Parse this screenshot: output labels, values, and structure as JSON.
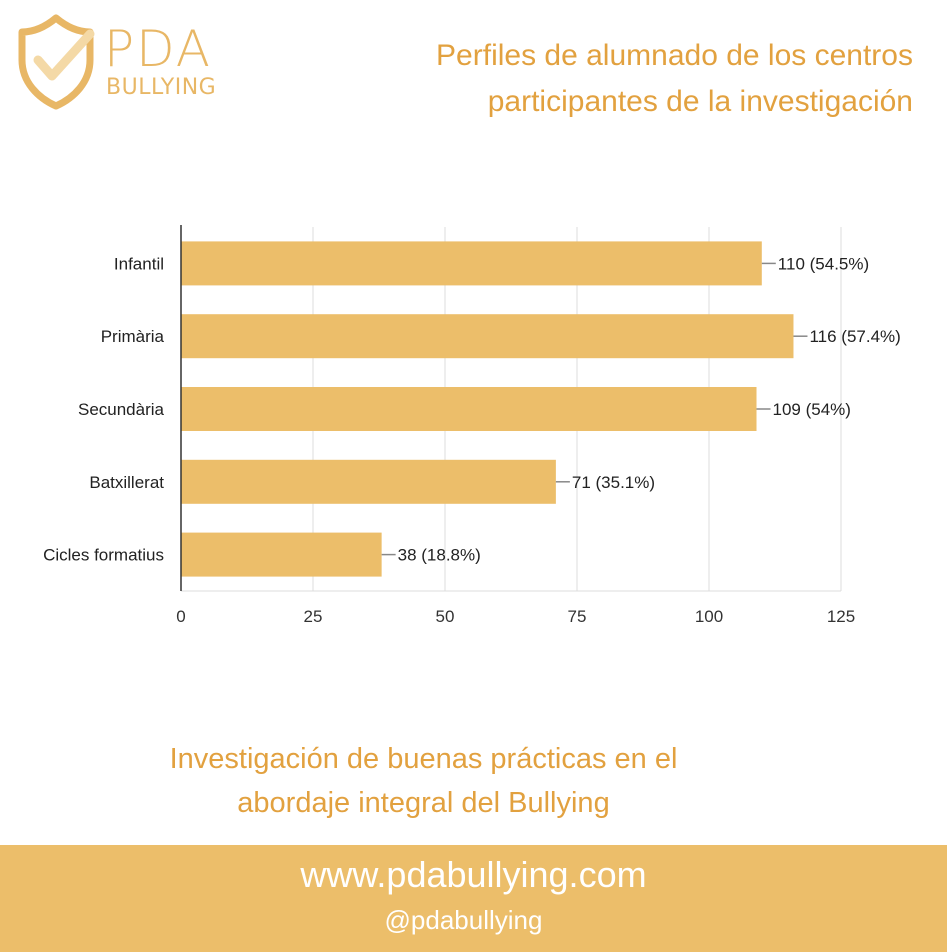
{
  "brand": {
    "logo_top": "PDA",
    "logo_bottom": "BULLYING",
    "logo_color": "#e8b766"
  },
  "header": {
    "title_line1": "Perfiles de alumnado de los centros",
    "title_line2": "participantes de la investigación"
  },
  "chart_data": {
    "type": "bar",
    "orientation": "horizontal",
    "categories": [
      "Infantil",
      "Primària",
      "Secundària",
      "Batxillerat",
      "Cicles formatius"
    ],
    "values": [
      110,
      116,
      109,
      71,
      38
    ],
    "data_labels": [
      "110 (54.5%)",
      "116 (57.4%)",
      "109 (54%)",
      "71 (35.1%)",
      "38 (18.8%)"
    ],
    "x_ticks": [
      0,
      25,
      50,
      75,
      100,
      125
    ],
    "xlim": [
      0,
      125
    ],
    "grid": true,
    "bar_color": "#ecbe6a",
    "title": "",
    "xlabel": "",
    "ylabel": ""
  },
  "caption": {
    "line1": "Investigación de buenas prácticas en el",
    "line2": "abordaje integral del Bullying"
  },
  "footer": {
    "url": "www.pdabullying.com",
    "handle": "@pdabullying",
    "background": "#ecbe6a"
  }
}
